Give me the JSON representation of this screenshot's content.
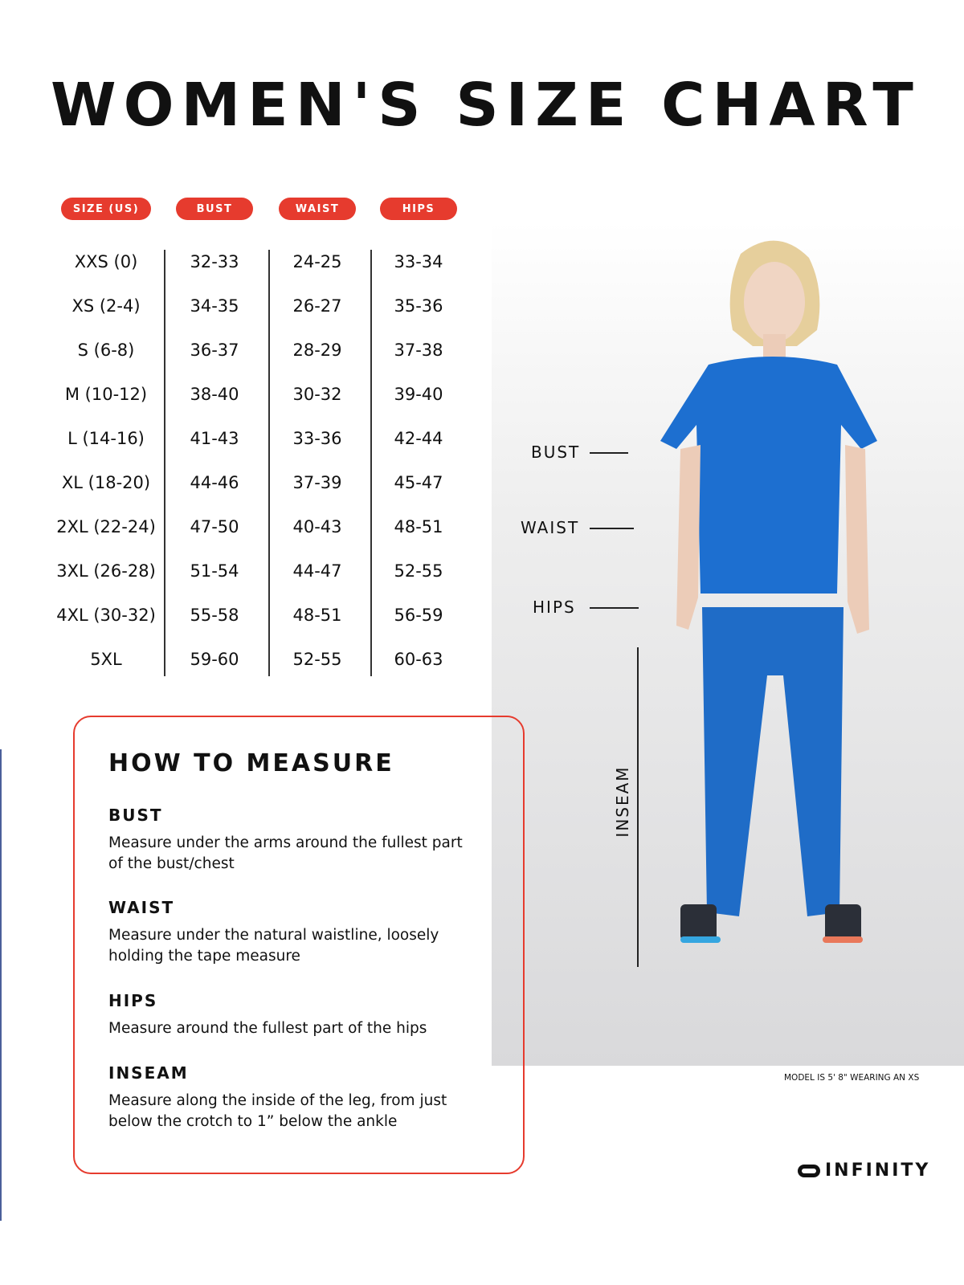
{
  "title": "WOMEN'S SIZE CHART",
  "colors": {
    "accent": "#e63b2e",
    "scrub_blue": "#1d6fd0"
  },
  "table": {
    "headers": [
      "SIZE (US)",
      "BUST",
      "WAIST",
      "HIPS"
    ],
    "rows": [
      [
        "XXS (0)",
        "32-33",
        "24-25",
        "33-34"
      ],
      [
        "XS (2-4)",
        "34-35",
        "26-27",
        "35-36"
      ],
      [
        "S (6-8)",
        "36-37",
        "28-29",
        "37-38"
      ],
      [
        "M (10-12)",
        "38-40",
        "30-32",
        "39-40"
      ],
      [
        "L (14-16)",
        "41-43",
        "33-36",
        "42-44"
      ],
      [
        "XL (18-20)",
        "44-46",
        "37-39",
        "45-47"
      ],
      [
        "2XL (22-24)",
        "47-50",
        "40-43",
        "48-51"
      ],
      [
        "3XL (26-28)",
        "51-54",
        "44-47",
        "52-55"
      ],
      [
        "4XL (30-32)",
        "55-58",
        "48-51",
        "56-59"
      ],
      [
        "5XL",
        "59-60",
        "52-55",
        "60-63"
      ]
    ]
  },
  "photo_labels": {
    "bust": "BUST",
    "waist": "WAIST",
    "hips": "HIPS",
    "inseam": "INSEAM"
  },
  "model_caption": "MODEL IS 5' 8\" WEARING AN XS",
  "measure": {
    "title": "HOW TO MEASURE",
    "sections": [
      {
        "heading": "BUST",
        "text": "Measure under the arms around the fullest part of the bust/chest"
      },
      {
        "heading": "WAIST",
        "text": "Measure under the natural waistline, loosely holding the tape measure"
      },
      {
        "heading": "HIPS",
        "text": "Measure around the fullest part of the hips"
      },
      {
        "heading": "INSEAM",
        "text": "Measure along the inside of the leg, from just below the crotch to 1” below the ankle"
      }
    ]
  },
  "brand": "INFINITY"
}
